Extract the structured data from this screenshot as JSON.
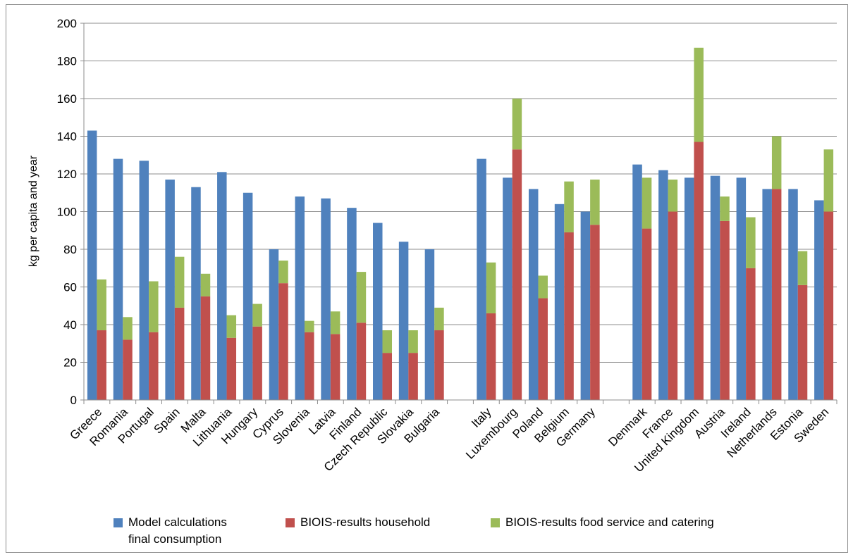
{
  "chart_data": {
    "type": "bar",
    "title": "",
    "ylabel": "kg per capita and year",
    "xlabel": "",
    "ylim": [
      0,
      200
    ],
    "yticks": [
      0,
      20,
      40,
      60,
      80,
      100,
      120,
      140,
      160,
      180,
      200
    ],
    "grid": true,
    "legend_position": "bottom",
    "stacked_series": [
      "BIOIS-results household",
      "BIOIS-results food service and catering"
    ],
    "categories": [
      "Greece",
      "Romania",
      "Portugal",
      "Spain",
      "Malta",
      "Lithuania",
      "Hungary",
      "Cyprus",
      "Slovenia",
      "Latvia",
      "Finland",
      "Czech Republic",
      "Slovakia",
      "Bulgaria",
      "",
      "Italy",
      "Luxembourg",
      "Poland",
      "Belgium",
      "Germany",
      "",
      "Denmark",
      "France",
      "United Kingdom",
      "Austria",
      "Ireland",
      "Netherlands",
      "Estonia",
      "Sweden"
    ],
    "series": [
      {
        "name": "Model calculations final consumption",
        "color": "#4f81bd",
        "values": [
          143,
          128,
          127,
          117,
          113,
          121,
          110,
          80,
          108,
          107,
          102,
          94,
          84,
          80,
          null,
          128,
          118,
          112,
          104,
          100,
          null,
          125,
          122,
          118,
          119,
          118,
          112,
          112,
          106
        ]
      },
      {
        "name": "BIOIS-results household",
        "color": "#c0504d",
        "values": [
          37,
          32,
          36,
          49,
          55,
          33,
          39,
          62,
          36,
          35,
          41,
          25,
          25,
          37,
          null,
          46,
          133,
          54,
          89,
          93,
          null,
          91,
          100,
          137,
          95,
          70,
          112,
          61,
          100
        ]
      },
      {
        "name": "BIOIS-results food service and catering",
        "color": "#9bbb59",
        "values": [
          27,
          12,
          27,
          27,
          12,
          12,
          12,
          12,
          6,
          12,
          27,
          12,
          12,
          12,
          null,
          27,
          27,
          12,
          27,
          24,
          null,
          27,
          17,
          50,
          13,
          27,
          28,
          18,
          33
        ]
      }
    ]
  },
  "legend": {
    "items": [
      {
        "label": "Model calculations",
        "label2": "final consumption",
        "color": "#4f81bd"
      },
      {
        "label": "BIOIS-results household",
        "label2": "",
        "color": "#c0504d"
      },
      {
        "label": "BIOIS-results food service and catering",
        "label2": "",
        "color": "#9bbb59"
      }
    ]
  }
}
